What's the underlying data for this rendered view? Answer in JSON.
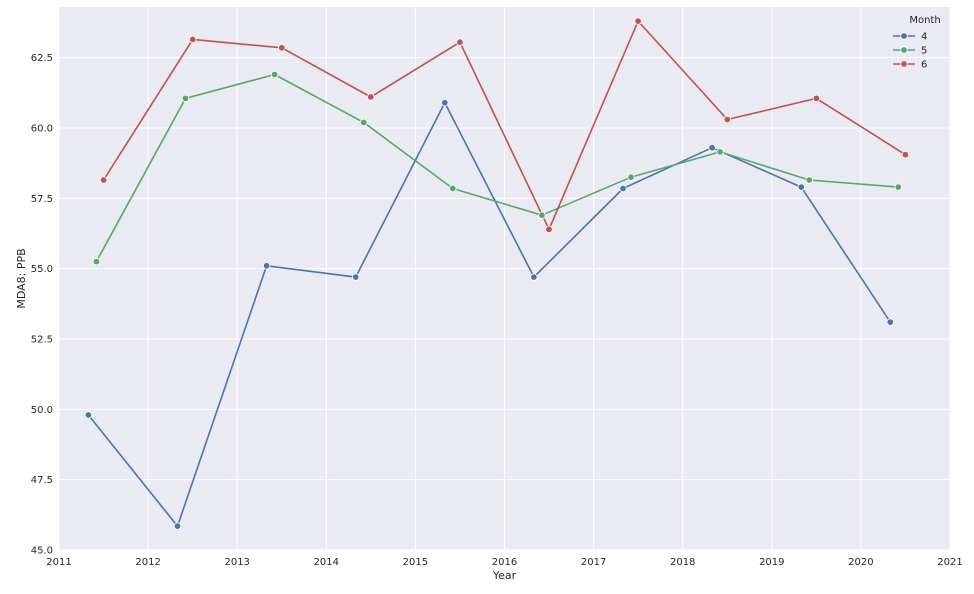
{
  "chart_data": {
    "type": "line",
    "xlabel": "Year",
    "ylabel": "MDA8: PPB",
    "xlim": [
      2011,
      2021
    ],
    "ylim": [
      45.0,
      64.3
    ],
    "x_ticks": [
      "2011",
      "2012",
      "2013",
      "2014",
      "2015",
      "2016",
      "2017",
      "2018",
      "2019",
      "2020",
      "2021"
    ],
    "y_ticks": [
      "45.0",
      "47.5",
      "50.0",
      "52.5",
      "55.0",
      "57.5",
      "60.0",
      "62.5"
    ],
    "grid": true,
    "legend": {
      "title": "Month",
      "placement": "top-right"
    },
    "series": [
      {
        "name": "4",
        "color": "#4c72b0",
        "points": [
          {
            "x": 2011.33,
            "y": 49.8
          },
          {
            "x": 2012.33,
            "y": 45.85
          },
          {
            "x": 2013.33,
            "y": 55.1
          },
          {
            "x": 2014.33,
            "y": 54.7
          },
          {
            "x": 2015.33,
            "y": 60.9
          },
          {
            "x": 2016.33,
            "y": 54.7
          },
          {
            "x": 2017.33,
            "y": 57.85
          },
          {
            "x": 2018.33,
            "y": 59.3
          },
          {
            "x": 2019.33,
            "y": 57.9
          },
          {
            "x": 2020.33,
            "y": 53.1
          }
        ]
      },
      {
        "name": "5",
        "color": "#55a868",
        "points": [
          {
            "x": 2011.42,
            "y": 55.25
          },
          {
            "x": 2012.42,
            "y": 61.05
          },
          {
            "x": 2013.42,
            "y": 61.9
          },
          {
            "x": 2014.42,
            "y": 60.2
          },
          {
            "x": 2015.42,
            "y": 57.85
          },
          {
            "x": 2016.42,
            "y": 56.9
          },
          {
            "x": 2017.42,
            "y": 58.25
          },
          {
            "x": 2018.42,
            "y": 59.15
          },
          {
            "x": 2019.42,
            "y": 58.15
          },
          {
            "x": 2020.42,
            "y": 57.9
          }
        ]
      },
      {
        "name": "6",
        "color": "#c44e52",
        "points": [
          {
            "x": 2011.5,
            "y": 58.15
          },
          {
            "x": 2012.5,
            "y": 63.15
          },
          {
            "x": 2013.5,
            "y": 62.85
          },
          {
            "x": 2014.5,
            "y": 61.1
          },
          {
            "x": 2015.5,
            "y": 63.05
          },
          {
            "x": 2016.5,
            "y": 56.4
          },
          {
            "x": 2017.5,
            "y": 63.8
          },
          {
            "x": 2018.5,
            "y": 60.3
          },
          {
            "x": 2019.5,
            "y": 61.05
          },
          {
            "x": 2020.5,
            "y": 59.05
          }
        ]
      }
    ]
  }
}
